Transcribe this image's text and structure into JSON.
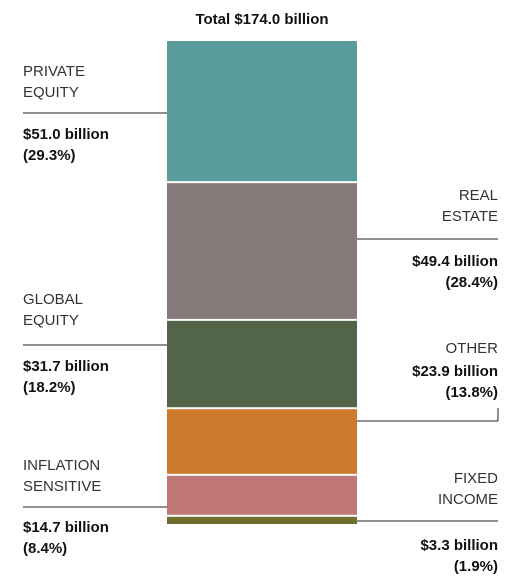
{
  "chart_data": {
    "type": "bar",
    "title": "Total $174.0 billion",
    "total": 174.0,
    "unit": "billion",
    "segments": [
      {
        "label_lines": [
          "PRIVATE",
          "EQUITY"
        ],
        "value_text": "$51.0 billion",
        "pct_text": "(29.3%)",
        "value": 51.0,
        "percent": 29.3,
        "color": "#5a9c9c"
      },
      {
        "label_lines": [
          "REAL",
          "ESTATE"
        ],
        "value_text": "$49.4 billion",
        "pct_text": "(28.4%)",
        "value": 49.4,
        "percent": 28.4,
        "color": "#857a7a"
      },
      {
        "label_lines": [
          "GLOBAL",
          "EQUITY"
        ],
        "value_text": "$31.7 billion",
        "pct_text": "(18.2%)",
        "value": 31.7,
        "percent": 18.2,
        "color": "#526549"
      },
      {
        "label_lines": [
          "OTHER"
        ],
        "value_text": "$23.9 billion",
        "pct_text": "(13.8%)",
        "value": 23.9,
        "percent": 13.8,
        "color": "#cd7a2d"
      },
      {
        "label_lines": [
          "INFLATION",
          "SENSITIVE"
        ],
        "value_text": "$14.7 billion",
        "pct_text": "(8.4%)",
        "value": 14.7,
        "percent": 8.4,
        "color": "#bf7777"
      },
      {
        "label_lines": [
          "FIXED",
          "INCOME"
        ],
        "value_text": "$3.3 billion",
        "pct_text": "(1.9%)",
        "value": 3.3,
        "percent": 1.9,
        "color": "#6f6e2f"
      }
    ]
  }
}
